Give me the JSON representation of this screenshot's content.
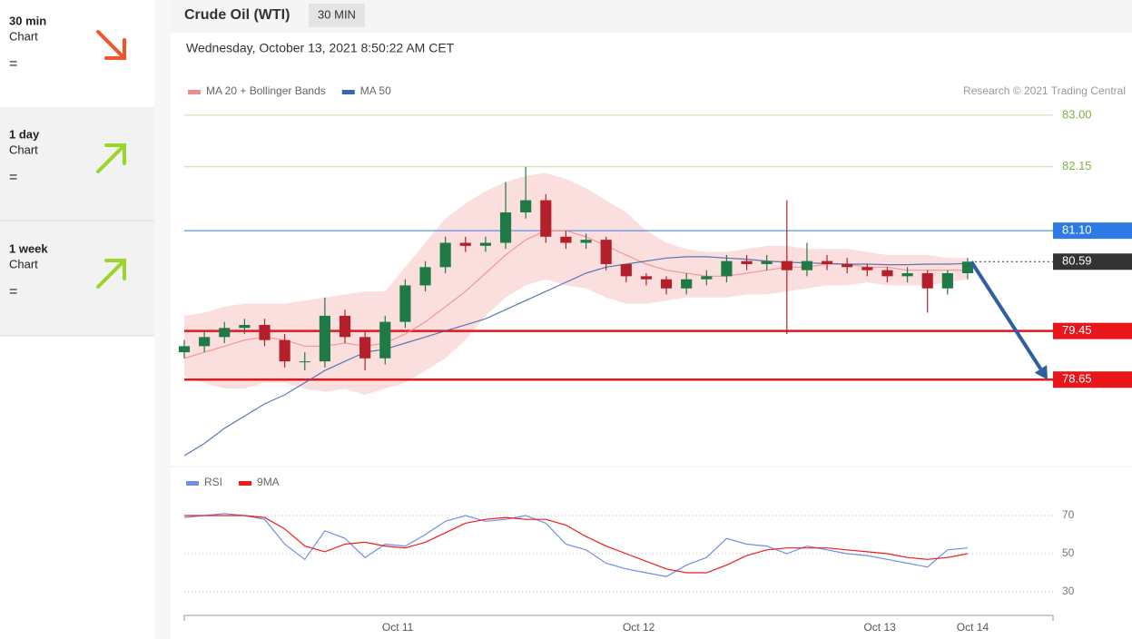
{
  "sidebar": {
    "items": [
      {
        "period": "30 min",
        "label": "Chart",
        "sign": "="
      },
      {
        "period": "1 day",
        "label": "Chart",
        "sign": "="
      },
      {
        "period": "1 week",
        "label": "Chart",
        "sign": "="
      }
    ]
  },
  "chart_data": [
    {
      "type": "candlestick",
      "title": "Crude Oil (WTI)",
      "timeframe": "30 MIN",
      "subtitle": "Wednesday, October 13, 2021 8:50:22 AM CET",
      "credit": "Research © 2021 Trading Central",
      "up_color": "#1f7a45",
      "down_color": "#b3202a",
      "x": [
        0,
        4,
        8,
        12,
        16,
        20,
        24,
        28,
        32,
        36,
        40,
        44,
        48,
        52,
        56,
        60,
        64,
        68,
        72,
        76,
        80,
        84,
        88,
        92,
        96,
        100,
        104,
        108,
        112,
        116,
        120,
        124,
        128,
        132,
        136,
        140,
        144,
        148,
        152,
        156
      ],
      "xlim": [
        0,
        173
      ],
      "ylim": [
        77.25,
        83.55
      ],
      "candles": {
        "open": [
          79.1,
          79.2,
          79.35,
          79.5,
          79.55,
          79.3,
          78.95,
          78.95,
          79.7,
          79.35,
          79.0,
          79.6,
          80.2,
          80.5,
          80.9,
          80.85,
          80.9,
          81.4,
          81.6,
          81.0,
          80.9,
          80.95,
          80.55,
          80.35,
          80.3,
          80.15,
          80.3,
          80.35,
          80.6,
          80.55,
          80.6,
          80.45,
          80.6,
          80.55,
          80.5,
          80.45,
          80.35,
          80.4,
          80.15,
          80.4
        ],
        "high": [
          79.3,
          79.45,
          79.6,
          79.65,
          79.65,
          79.4,
          79.1,
          80.0,
          79.8,
          79.45,
          79.7,
          80.3,
          80.6,
          81.0,
          81.0,
          81.0,
          81.9,
          82.15,
          81.7,
          81.1,
          81.05,
          81.0,
          80.45,
          80.4,
          80.35,
          80.4,
          80.45,
          80.7,
          80.7,
          80.7,
          81.6,
          80.9,
          80.7,
          80.65,
          80.55,
          80.5,
          80.5,
          80.45,
          80.45,
          80.65
        ],
        "low": [
          79.0,
          79.1,
          79.25,
          79.4,
          79.2,
          78.85,
          78.8,
          78.85,
          79.25,
          78.8,
          78.9,
          79.5,
          80.1,
          80.4,
          80.75,
          80.75,
          80.8,
          81.3,
          80.9,
          80.8,
          80.8,
          80.45,
          80.25,
          80.2,
          80.05,
          80.05,
          80.2,
          80.25,
          80.45,
          80.45,
          79.4,
          80.35,
          80.45,
          80.4,
          80.35,
          80.25,
          80.25,
          79.75,
          80.05,
          80.3
        ],
        "close": [
          79.2,
          79.35,
          79.5,
          79.55,
          79.3,
          78.95,
          78.95,
          79.7,
          79.35,
          79.0,
          79.6,
          80.2,
          80.5,
          80.9,
          80.85,
          80.9,
          81.4,
          81.6,
          81.0,
          80.9,
          80.95,
          80.55,
          80.35,
          80.3,
          80.15,
          80.3,
          80.35,
          80.6,
          80.55,
          80.6,
          80.45,
          80.6,
          80.55,
          80.5,
          80.45,
          80.35,
          80.4,
          80.15,
          80.4,
          80.59
        ]
      },
      "series": [
        {
          "name": "MA 20 + Bollinger Bands",
          "color": "#f28b8b",
          "values": [
            79.0,
            79.1,
            79.2,
            79.3,
            79.35,
            79.3,
            79.2,
            79.2,
            79.25,
            79.2,
            79.25,
            79.4,
            79.6,
            79.85,
            80.1,
            80.4,
            80.7,
            80.95,
            81.1,
            81.1,
            81.0,
            80.85,
            80.7,
            80.55,
            80.45,
            80.4,
            80.35,
            80.35,
            80.4,
            80.45,
            80.5,
            80.5,
            80.55,
            80.55,
            80.5,
            80.5,
            80.45,
            80.45,
            80.45,
            80.45
          ],
          "upper": [
            79.7,
            79.75,
            79.85,
            79.9,
            79.9,
            79.9,
            79.95,
            80.0,
            80.05,
            80.1,
            80.1,
            80.5,
            80.9,
            81.3,
            81.55,
            81.75,
            81.9,
            82.0,
            82.05,
            81.95,
            81.8,
            81.6,
            81.4,
            81.1,
            80.9,
            80.8,
            80.75,
            80.75,
            80.8,
            80.85,
            80.85,
            80.8,
            80.8,
            80.8,
            80.75,
            80.7,
            80.7,
            80.7,
            80.65,
            80.65
          ],
          "lower": [
            78.7,
            78.6,
            78.5,
            78.5,
            78.6,
            78.6,
            78.5,
            78.45,
            78.5,
            78.4,
            78.5,
            78.6,
            78.8,
            79.0,
            79.3,
            79.7,
            80.0,
            80.2,
            80.3,
            80.2,
            80.15,
            80.0,
            79.9,
            79.9,
            79.95,
            80.0,
            80.0,
            80.0,
            80.05,
            80.05,
            80.1,
            80.15,
            80.2,
            80.2,
            80.25,
            80.2,
            80.2,
            80.2,
            80.25,
            80.3
          ]
        },
        {
          "name": "MA 50",
          "color": "#3d63a8",
          "values": [
            77.4,
            77.6,
            77.85,
            78.05,
            78.25,
            78.4,
            78.6,
            78.8,
            78.95,
            79.1,
            79.15,
            79.25,
            79.35,
            79.45,
            79.55,
            79.65,
            79.8,
            79.95,
            80.1,
            80.25,
            80.4,
            80.5,
            80.55,
            80.6,
            80.65,
            80.67,
            80.67,
            80.65,
            80.63,
            80.6,
            80.58,
            80.57,
            80.56,
            80.55,
            80.55,
            80.54,
            80.54,
            80.55,
            80.55,
            80.56
          ]
        }
      ],
      "levels": [
        {
          "value": 83,
          "label": "83.00",
          "color": "#7cb342",
          "boxed": false
        },
        {
          "value": 82.15,
          "label": "82.15",
          "color": "#7cb342",
          "boxed": false
        },
        {
          "value": 81.1,
          "label": "81.10",
          "color": "#2f7be5",
          "boxed": true
        },
        {
          "value": 80.59,
          "label": "80.59",
          "color": "#333333",
          "boxed": true
        },
        {
          "value": 79.45,
          "label": "79.45",
          "color": "#e8151b",
          "boxed": true
        },
        {
          "value": 78.65,
          "label": "78.65",
          "color": "#e8151b",
          "boxed": true
        }
      ]
    },
    {
      "type": "line",
      "x": [
        0,
        4,
        8,
        12,
        16,
        20,
        24,
        28,
        32,
        36,
        40,
        44,
        48,
        52,
        56,
        60,
        64,
        68,
        72,
        76,
        80,
        84,
        88,
        92,
        96,
        100,
        104,
        108,
        112,
        116,
        120,
        124,
        128,
        132,
        136,
        140,
        144,
        148,
        152,
        156
      ],
      "xlim": [
        0,
        173
      ],
      "xticks": [
        {
          "value": 42.5,
          "label": "Oct 11"
        },
        {
          "value": 90.5,
          "label": "Oct 12"
        },
        {
          "value": 138.5,
          "label": "Oct 13"
        },
        {
          "value": 157,
          "label": "Oct 14"
        }
      ],
      "ylim": [
        20,
        80
      ],
      "yticks": [
        30,
        50,
        70
      ],
      "series": [
        {
          "name": "RSI",
          "color": "#6f8fe3",
          "values": [
            69,
            70,
            71,
            70,
            68,
            55,
            47,
            62,
            58,
            48,
            55,
            54,
            60,
            67,
            70,
            67,
            68,
            70,
            66,
            55,
            52,
            45,
            42,
            40,
            38,
            44,
            48,
            58,
            55,
            54,
            50,
            54,
            52,
            50,
            49,
            47,
            45,
            43,
            52,
            53
          ]
        },
        {
          "name": "9MA",
          "color": "#f01a1a",
          "values": [
            70,
            70,
            70,
            70,
            69,
            63,
            54,
            51,
            55,
            56,
            54,
            53,
            56,
            61,
            66,
            68,
            69,
            68,
            68,
            65,
            59,
            54,
            50,
            46,
            42,
            40,
            40,
            44,
            49,
            52,
            53,
            53,
            53,
            52,
            51,
            50,
            48,
            47,
            48,
            50
          ]
        }
      ]
    }
  ]
}
